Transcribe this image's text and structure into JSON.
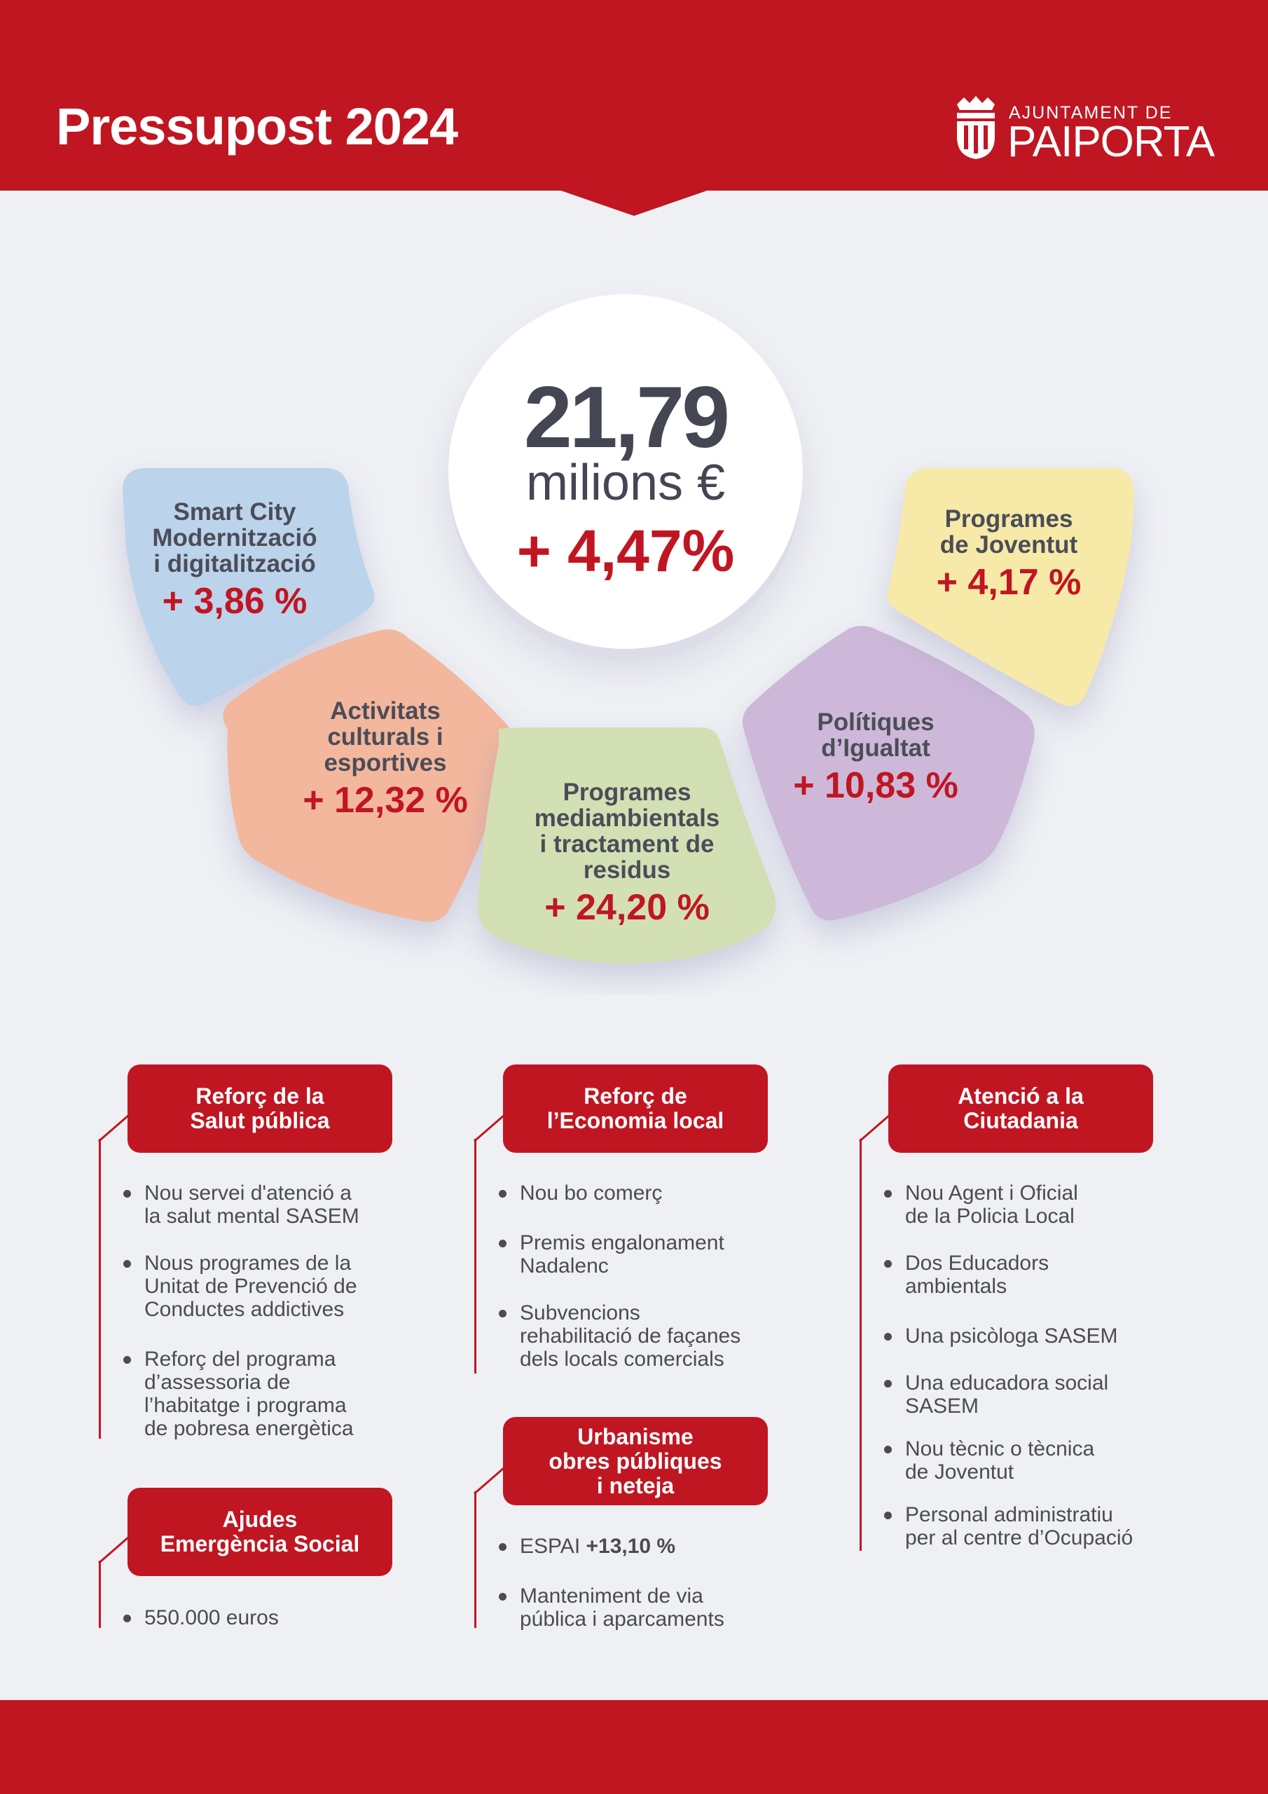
{
  "header": {
    "title": "Pressupost 2024",
    "logo": {
      "line1": "AJUNTAMENT DE",
      "line2": "PAIPORTA"
    }
  },
  "total": {
    "value": "21,79",
    "unit": "milions €",
    "change": "+ 4,47%"
  },
  "segments": [
    {
      "label": "Smart City\nModernització\ni digitalització",
      "change": "+ 3,86 %",
      "color": "#bcd3ec"
    },
    {
      "label": "Activitats\nculturals i\nesportives",
      "change": "+ 12,32 %",
      "color": "#f3b79d"
    },
    {
      "label": "Programes\nmediambientals\ni tractament de\nresidus",
      "change": "+ 24,20 %",
      "color": "#d3e0b4"
    },
    {
      "label": "Polítiques\nd’Igualtat",
      "change": "+ 10,83 %",
      "color": "#cdb8d9"
    },
    {
      "label": "Programes\nde Joventut",
      "change": "+ 4,17 %",
      "color": "#f7e9a7"
    }
  ],
  "sections": {
    "salut": {
      "title": "Reforç de la\nSalut pública",
      "items": [
        "Nou servei d'atenció a\nla salut mental SASEM",
        "Nous programes de la\nUnitat de Prevenció de\nConductes addictives",
        "Reforç del programa\nd’assessoria de\nl’habitatge i programa\nde pobresa energètica"
      ]
    },
    "ajudes": {
      "title": "Ajudes\nEmergència Social",
      "items": [
        "550.000 euros"
      ]
    },
    "economia": {
      "title": "Reforç de\nl’Economia local",
      "items": [
        "Nou bo comerç",
        "Premis engalonament\nNadalenc",
        "Subvencions\nrehabilitació de façanes\ndels locals comercials"
      ]
    },
    "urbanisme": {
      "title": "Urbanisme\nobres públiques\ni neteja",
      "items": [
        {
          "text": "ESPAI ",
          "bold": "+13,10 %"
        },
        "Manteniment de via\npública i aparcaments"
      ]
    },
    "ciutadania": {
      "title": "Atenció a la\nCiutadania",
      "items": [
        "Nou Agent i Oficial\nde la Policia Local",
        "Dos Educadors\nambientals",
        "Una psicòloga SASEM",
        "Una educadora social\nSASEM",
        "Nou tècnic o tècnica\nde Joventut",
        "Personal administratiu\nper al centre d’Ocupació"
      ]
    }
  }
}
